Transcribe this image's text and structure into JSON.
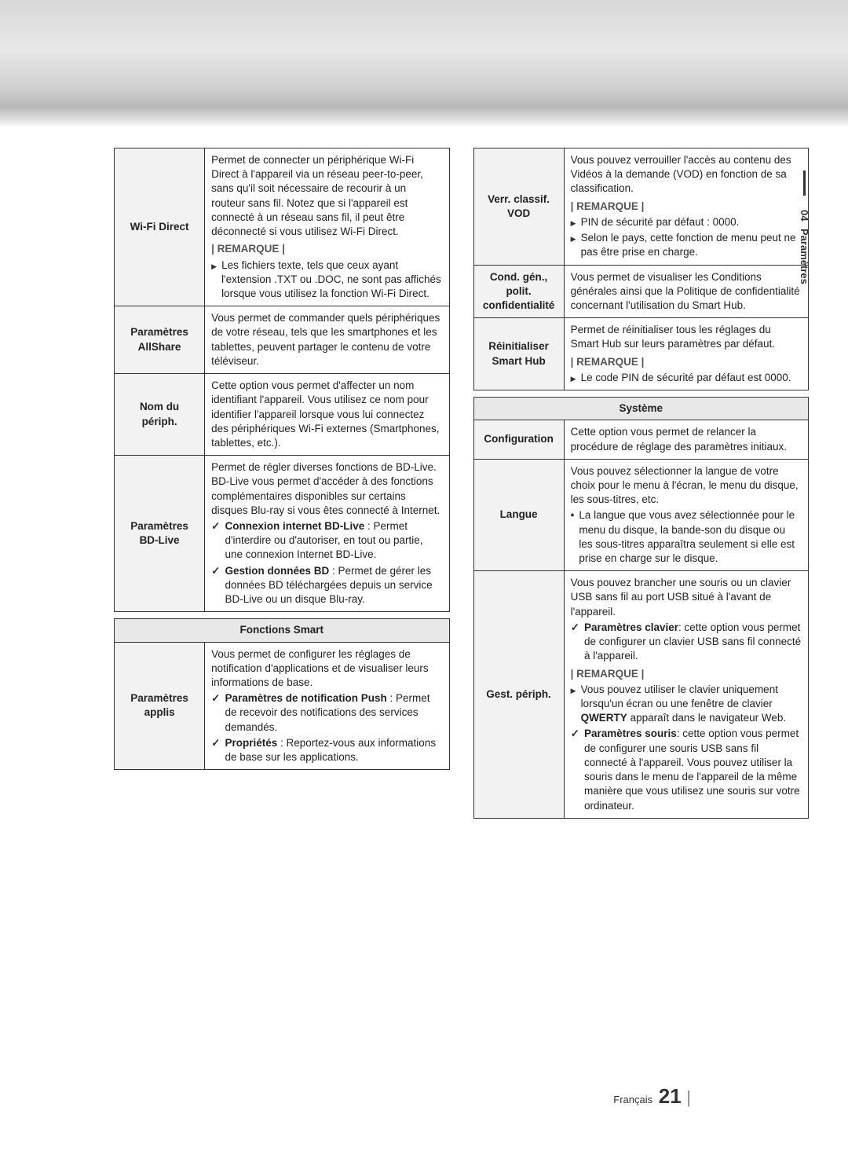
{
  "sideTab": {
    "num": "04",
    "text": "Paramètres"
  },
  "footer": {
    "lang": "Français",
    "page": "21"
  },
  "left": {
    "wifiDirect": {
      "label": "Wi-Fi Direct",
      "desc": "Permet de connecter un périphérique Wi-Fi Direct à l'appareil via un réseau peer-to-peer, sans qu'il soit nécessaire de recourir à un routeur sans fil. Notez que si l'appareil est connecté à un réseau sans fil, il peut être déconnecté si vous utilisez Wi-Fi Direct.",
      "remarque": "| REMARQUE |",
      "bullet1": "Les fichiers texte, tels que ceux ayant l'extension .TXT ou .DOC, ne sont pas affichés lorsque vous utilisez la fonction Wi-Fi Direct."
    },
    "allshare": {
      "label": "Paramètres AllShare",
      "desc": "Vous permet de commander quels périphériques de votre réseau, tels que les smartphones et les tablettes, peuvent partager le contenu de votre téléviseur."
    },
    "nomPeriph": {
      "label": "Nom du périph.",
      "desc": "Cette option vous permet d'affecter un nom identifiant l'appareil. Vous utilisez ce nom pour identifier l'appareil lorsque vous lui connectez des périphériques Wi-Fi externes (Smartphones, tablettes, etc.)."
    },
    "bdlive": {
      "label": "Paramètres BD-Live",
      "desc": "Permet de régler diverses fonctions de BD-Live. BD-Live vous permet d'accéder à des fonctions complémentaires disponibles sur certains disques Blu-ray si vous êtes connecté à Internet.",
      "check1Label": "Connexion internet BD-Live",
      "check1Text": " : Permet d'interdire ou d'autoriser, en tout ou partie, une connexion Internet BD-Live.",
      "check2Label": "Gestion données BD",
      "check2Text": " : Permet de gérer les données BD téléchargées depuis un service BD-Live ou un disque Blu-ray."
    },
    "smartHeader": "Fonctions Smart",
    "applis": {
      "label": "Paramètres applis",
      "desc": "Vous permet de configurer les réglages de notification d'applications et de visualiser leurs informations de base.",
      "check1Label": "Paramètres de notification Push",
      "check1Text": " : Permet de recevoir des notifications des services demandés.",
      "check2Label": "Propriétés",
      "check2Text": " : Reportez-vous aux informations de base sur les applications."
    }
  },
  "right": {
    "verrVod": {
      "label": "Verr. classif. VOD",
      "desc": "Vous pouvez verrouiller l'accès au contenu des Vidéos à la demande (VOD) en fonction de sa classification.",
      "remarque": "| REMARQUE |",
      "bullet1": "PIN de sécurité par défaut : 0000.",
      "bullet2": "Selon le pays, cette fonction de menu peut ne pas être prise en charge."
    },
    "cond": {
      "label": "Cond. gén., polit. confidentialité",
      "desc": "Vous permet de visualiser les Conditions générales ainsi que la Politique de confidentialité concernant l'utilisation du Smart Hub."
    },
    "reinit": {
      "label": "Réinitialiser Smart Hub",
      "desc": "Permet de réinitialiser tous les réglages du Smart Hub sur leurs paramètres par défaut.",
      "remarque": "| REMARQUE |",
      "bullet1": "Le code PIN de sécurité par défaut est 0000."
    },
    "systemHeader": "Système",
    "config": {
      "label": "Configuration",
      "desc": "Cette option vous permet de relancer la procédure de réglage des paramètres initiaux."
    },
    "langue": {
      "label": "Langue",
      "desc": "Vous pouvez sélectionner la langue de votre choix pour le menu à l'écran, le menu du disque, les sous-titres, etc.",
      "bullet1": "La langue que vous avez sélectionnée pour le menu du disque, la bande-son du disque ou les sous-titres apparaîtra seulement si elle est prise en charge sur le disque."
    },
    "gestPeriph": {
      "label": "Gest. périph.",
      "desc": "Vous pouvez brancher une souris ou un clavier USB sans fil au port USB situé à l'avant de l'appareil.",
      "check1Label": "Paramètres clavier",
      "check1Text": ": cette option vous permet de configurer un clavier USB sans fil connecté à l'appareil.",
      "remarque": "| REMARQUE |",
      "bullet1a": "Vous pouvez utiliser le clavier uniquement lorsqu'un écran ou une fenêtre de clavier ",
      "bullet1b": "QWERTY",
      "bullet1c": " apparaît dans le navigateur Web.",
      "check2Label": "Paramètres souris",
      "check2Text": ": cette option vous permet de configurer une souris USB sans fil connecté à l'appareil. Vous pouvez utiliser la souris dans le menu de l'appareil de la même manière que vous utilisez une souris sur votre ordinateur."
    }
  }
}
